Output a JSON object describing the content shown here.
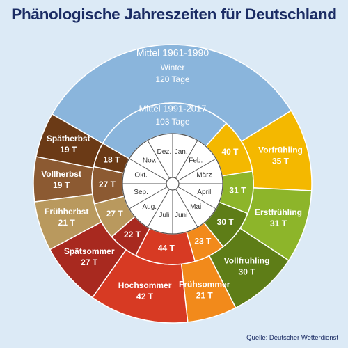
{
  "title": "Phänologische Jahreszeiten für Deutschland",
  "source": "Quelle: Deutscher Wetterdienst",
  "chart_data": {
    "type": "pie",
    "outer_ring": {
      "title": "Mittel 1961-1990",
      "slices": [
        {
          "name": "Winter",
          "value": 120,
          "label": "120 Tage",
          "color": "#8ab5dc"
        },
        {
          "name": "Vorfrühling",
          "value": 35,
          "label": "35 T",
          "color": "#f4b800"
        },
        {
          "name": "Erstfrühling",
          "value": 31,
          "label": "31 T",
          "color": "#8db52a"
        },
        {
          "name": "Vollfrühling",
          "value": 30,
          "label": "30 T",
          "color": "#5e7d17"
        },
        {
          "name": "Frühsommer",
          "value": 21,
          "label": "21 T",
          "color": "#f28a1b"
        },
        {
          "name": "Hochsommer",
          "value": 42,
          "label": "42 T",
          "color": "#d73a23"
        },
        {
          "name": "Spätsommer",
          "value": 27,
          "label": "27 T",
          "color": "#a8291f"
        },
        {
          "name": "Frühherbst",
          "value": 21,
          "label": "21 T",
          "color": "#b9995e"
        },
        {
          "name": "Vollherbst",
          "value": 19,
          "label": "19 T",
          "color": "#8c5a32"
        },
        {
          "name": "Spätherbst",
          "value": 19,
          "label": "19 T",
          "color": "#6b3a16"
        }
      ]
    },
    "inner_ring": {
      "title": "Mittel 1991-2017",
      "slices": [
        {
          "name": "Winter",
          "value": 103,
          "label": "103 Tage",
          "color": "#8ab5dc"
        },
        {
          "name": "Vorfrühling",
          "value": 40,
          "label": "40 T",
          "color": "#f4b800"
        },
        {
          "name": "Erstfrühling",
          "value": 31,
          "label": "31 T",
          "color": "#8db52a"
        },
        {
          "name": "Vollfrühling",
          "value": 30,
          "label": "30 T",
          "color": "#5e7d17"
        },
        {
          "name": "Frühsommer",
          "value": 23,
          "label": "23 T",
          "color": "#f28a1b"
        },
        {
          "name": "Hochsommer",
          "value": 44,
          "label": "44 T",
          "color": "#d73a23"
        },
        {
          "name": "Spätsommer",
          "value": 22,
          "label": "22 T",
          "color": "#a8291f"
        },
        {
          "name": "Frühherbst",
          "value": 27,
          "label": "27 T",
          "color": "#b9995e"
        },
        {
          "name": "Vollherbst",
          "value": 27,
          "label": "27 T",
          "color": "#8c5a32"
        },
        {
          "name": "Spätherbst",
          "value": 18,
          "label": "18 T",
          "color": "#6b3a16"
        }
      ]
    },
    "months": [
      "Jan.",
      "Feb.",
      "März",
      "April",
      "Mai",
      "Juni",
      "Juli",
      "Aug.",
      "Sep.",
      "Okt.",
      "Nov.",
      "Dez."
    ]
  }
}
